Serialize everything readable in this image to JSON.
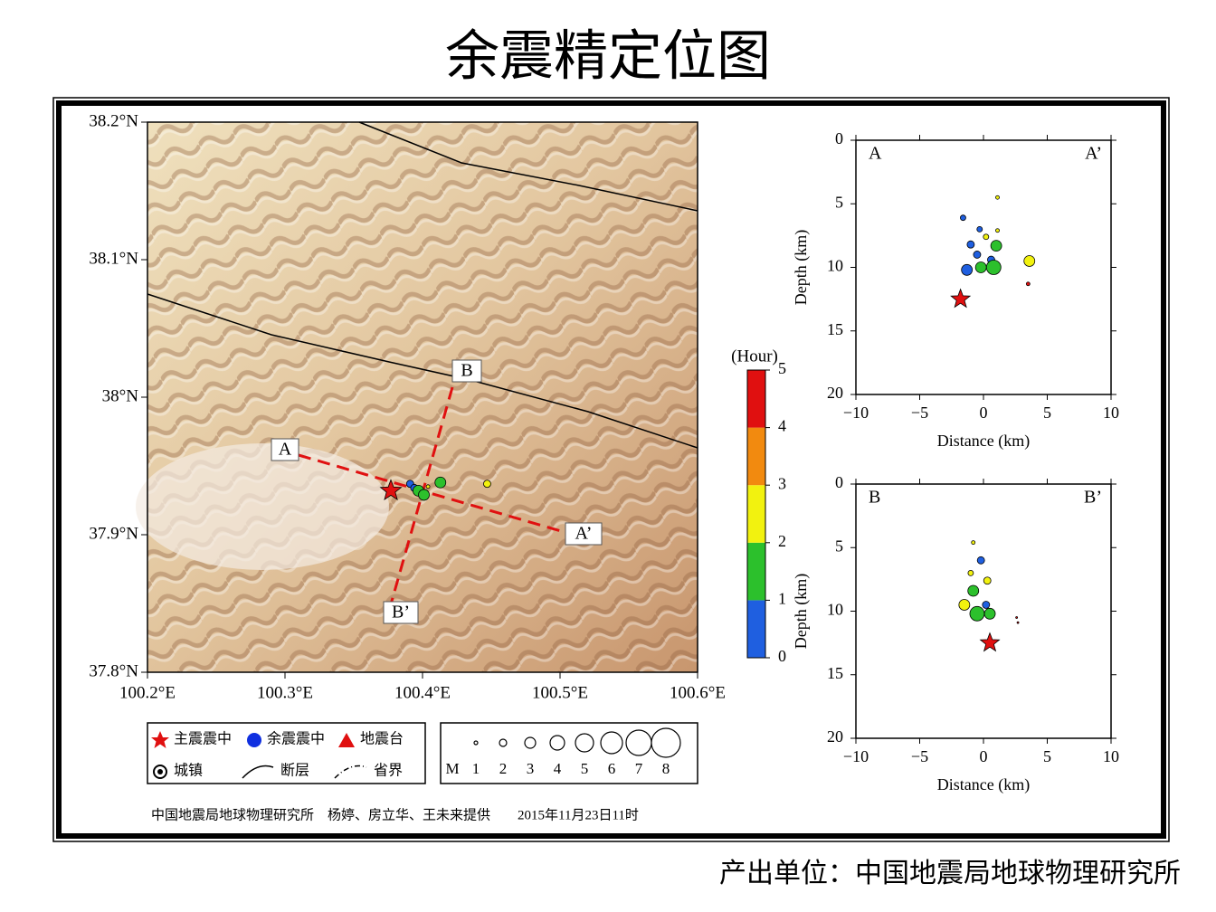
{
  "title": "余震精定位图",
  "map": {
    "xlim": [
      100.2,
      100.6
    ],
    "ylim": [
      37.8,
      38.2
    ],
    "xticks": [
      {
        "value": 100.2,
        "label": "100.2°E"
      },
      {
        "value": 100.3,
        "label": "100.3°E"
      },
      {
        "value": 100.4,
        "label": "100.4°E"
      },
      {
        "value": 100.5,
        "label": "100.5°E"
      },
      {
        "value": 100.6,
        "label": "100.6°E"
      }
    ],
    "yticks": [
      {
        "value": 37.8,
        "label": "37.8°N"
      },
      {
        "value": 37.9,
        "label": "37.9°N"
      },
      {
        "value": 38.0,
        "label": "38°N"
      },
      {
        "value": 38.1,
        "label": "38.1°N"
      },
      {
        "value": 38.2,
        "label": "38.2°N"
      }
    ],
    "profile_labels": [
      "A",
      "A’",
      "B",
      "B’"
    ],
    "mainshock": {
      "lon": 100.377,
      "lat": 37.932
    },
    "aftershocks": [
      {
        "lon": 100.391,
        "lat": 37.937,
        "hour": 0.5,
        "magnitude": 2
      },
      {
        "lon": 100.394,
        "lat": 37.934,
        "hour": 0.7,
        "magnitude": 2
      },
      {
        "lon": 100.397,
        "lat": 37.932,
        "hour": 1.5,
        "magnitude": 3
      },
      {
        "lon": 100.401,
        "lat": 37.929,
        "hour": 1.6,
        "magnitude": 3
      },
      {
        "lon": 100.413,
        "lat": 37.938,
        "hour": 1.4,
        "magnitude": 3
      },
      {
        "lon": 100.404,
        "lat": 37.935,
        "hour": 2.5,
        "magnitude": 1
      },
      {
        "lon": 100.447,
        "lat": 37.937,
        "hour": 2.6,
        "magnitude": 2
      }
    ]
  },
  "colorbar": {
    "label": "(Hour)",
    "lim": [
      0,
      5
    ],
    "ticks": [
      0,
      1,
      2,
      3,
      4,
      5
    ],
    "colors": [
      "#1f5fe0",
      "#2cc02c",
      "#f2f20f",
      "#f28a0f",
      "#e01010"
    ]
  },
  "legend": {
    "items": [
      "主震震中",
      "余震震中",
      "地震台",
      "城镇",
      "断层",
      "省界"
    ],
    "magnitude_label": "M",
    "magnitudes": [
      1,
      2,
      3,
      4,
      5,
      6,
      7,
      8
    ]
  },
  "credit": "中国地震局地球物理研究所　杨婷、房立华、王未来提供　　2015年11月23日11时",
  "sections": [
    {
      "left_label": "A",
      "right_label": "A’",
      "xlabel": "Distance (km)",
      "ylabel": "Depth (km)",
      "xlim": [
        -10,
        10
      ],
      "ylim": [
        0,
        20
      ],
      "xticks": [
        {
          "value": -10,
          "label": "−10"
        },
        {
          "value": -5,
          "label": "−5"
        },
        0,
        5,
        10
      ],
      "yticks": [
        0,
        5,
        10,
        15,
        20
      ],
      "mainshock": {
        "distance": -1.8,
        "depth": 12.5
      },
      "points": [
        {
          "distance": 1.1,
          "depth": 4.5,
          "hour": 2.5,
          "magnitude": 1
        },
        {
          "distance": -1.6,
          "depth": 6.1,
          "hour": 0.5,
          "magnitude": 1.5
        },
        {
          "distance": -0.3,
          "depth": 7.0,
          "hour": 0.6,
          "magnitude": 1.5
        },
        {
          "distance": 1.1,
          "depth": 7.1,
          "hour": 2.4,
          "magnitude": 1
        },
        {
          "distance": 0.2,
          "depth": 7.6,
          "hour": 2.6,
          "magnitude": 1.5
        },
        {
          "distance": -1.0,
          "depth": 8.2,
          "hour": 0.4,
          "magnitude": 2
        },
        {
          "distance": 1.0,
          "depth": 8.3,
          "hour": 1.5,
          "magnitude": 3
        },
        {
          "distance": -0.5,
          "depth": 9.0,
          "hour": 0.5,
          "magnitude": 2
        },
        {
          "distance": 0.6,
          "depth": 9.4,
          "hour": 0.8,
          "magnitude": 2
        },
        {
          "distance": 3.6,
          "depth": 9.5,
          "hour": 2.5,
          "magnitude": 3
        },
        {
          "distance": 0.8,
          "depth": 10.0,
          "hour": 1.5,
          "magnitude": 4
        },
        {
          "distance": -1.3,
          "depth": 10.2,
          "hour": 0.5,
          "magnitude": 3
        },
        {
          "distance": -0.2,
          "depth": 10.0,
          "hour": 1.6,
          "magnitude": 3
        },
        {
          "distance": 3.5,
          "depth": 11.3,
          "hour": 4.5,
          "magnitude": 1
        }
      ]
    },
    {
      "left_label": "B",
      "right_label": "B’",
      "xlabel": "Distance (km)",
      "ylabel": "Depth (km)",
      "xlim": [
        -10,
        10
      ],
      "ylim": [
        0,
        20
      ],
      "xticks": [
        {
          "value": -10,
          "label": "−10"
        },
        {
          "value": -5,
          "label": "−5"
        },
        0,
        5,
        10
      ],
      "yticks": [
        0,
        5,
        10,
        15,
        20
      ],
      "mainshock": {
        "distance": 0.5,
        "depth": 12.5
      },
      "points": [
        {
          "distance": -0.8,
          "depth": 4.6,
          "hour": 2.5,
          "magnitude": 1
        },
        {
          "distance": -0.2,
          "depth": 6.0,
          "hour": 0.5,
          "magnitude": 2
        },
        {
          "distance": -1.0,
          "depth": 7.0,
          "hour": 2.5,
          "magnitude": 1.5
        },
        {
          "distance": 0.3,
          "depth": 7.6,
          "hour": 2.6,
          "magnitude": 2
        },
        {
          "distance": -0.8,
          "depth": 8.4,
          "hour": 1.5,
          "magnitude": 3
        },
        {
          "distance": 0.2,
          "depth": 9.5,
          "hour": 0.6,
          "magnitude": 2
        },
        {
          "distance": -1.5,
          "depth": 9.5,
          "hour": 2.5,
          "magnitude": 3
        },
        {
          "distance": -0.5,
          "depth": 10.2,
          "hour": 1.5,
          "magnitude": 4
        },
        {
          "distance": 0.5,
          "depth": 10.2,
          "hour": 1.6,
          "magnitude": 3
        },
        {
          "distance": 2.6,
          "depth": 10.5,
          "hour": 4.5,
          "magnitude": 0.5
        },
        {
          "distance": 2.7,
          "depth": 10.9,
          "hour": 4.5,
          "magnitude": 0.5
        }
      ]
    }
  ],
  "footer": "产出单位：中国地震局地球物理研究所"
}
